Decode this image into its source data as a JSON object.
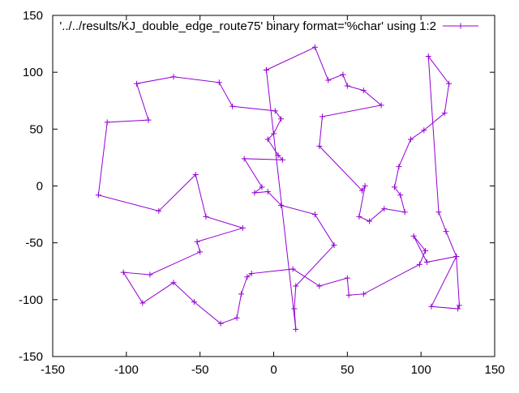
{
  "chart_data": {
    "type": "line",
    "title": "",
    "xlabel": "",
    "ylabel": "",
    "xlim": [
      -150,
      150
    ],
    "ylim": [
      -150,
      150
    ],
    "x_ticks": [
      -150,
      -100,
      -50,
      0,
      50,
      100,
      150
    ],
    "y_ticks": [
      -150,
      -100,
      -50,
      0,
      50,
      100,
      150
    ],
    "grid": false,
    "legend_position": "top-right",
    "series": [
      {
        "name": "'../../results/KJ_double_edge_route75' binary format='%char' using 1:2",
        "color": "#9400d3",
        "marker": "plus",
        "points": [
          [
            -5,
            102
          ],
          [
            28,
            122
          ],
          [
            37,
            93
          ],
          [
            47,
            98
          ],
          [
            50,
            88
          ],
          [
            61,
            84
          ],
          [
            73,
            71
          ],
          [
            33,
            61
          ],
          [
            31,
            35
          ],
          [
            60,
            -4
          ],
          [
            62,
            0
          ],
          [
            58,
            -27
          ],
          [
            65,
            -31
          ],
          [
            75,
            -20
          ],
          [
            89,
            -23
          ],
          [
            86,
            -8
          ],
          [
            82,
            -1
          ],
          [
            85,
            17
          ],
          [
            93,
            41
          ],
          [
            102,
            49
          ],
          [
            116,
            64
          ],
          [
            119,
            90
          ],
          [
            105,
            114
          ],
          [
            112,
            -23
          ],
          [
            117,
            -40
          ],
          [
            124,
            -62
          ],
          [
            107,
            -106
          ],
          [
            125,
            -108
          ],
          [
            126,
            -105
          ],
          [
            124,
            -62
          ],
          [
            104,
            -67
          ],
          [
            95,
            -44
          ],
          [
            103,
            -57
          ],
          [
            99,
            -69
          ],
          [
            61,
            -95
          ],
          [
            51,
            -96
          ],
          [
            50,
            -81
          ],
          [
            31,
            -88
          ],
          [
            13,
            -73
          ],
          [
            -15,
            -77
          ],
          [
            -18,
            -80
          ],
          [
            -22,
            -95
          ],
          [
            -25,
            -116
          ],
          [
            -36,
            -121
          ],
          [
            -54,
            -102
          ],
          [
            -68,
            -85
          ],
          [
            -89,
            -103
          ],
          [
            -102,
            -76
          ],
          [
            -84,
            -78
          ],
          [
            -50,
            -58
          ],
          [
            -52,
            -49
          ],
          [
            -21,
            -37
          ],
          [
            -46,
            -27
          ],
          [
            -53,
            10
          ],
          [
            -78,
            -22
          ],
          [
            -119,
            -8
          ],
          [
            -113,
            56
          ],
          [
            -85,
            58
          ],
          [
            -93,
            90
          ],
          [
            -68,
            96
          ],
          [
            -37,
            91
          ],
          [
            -28,
            70
          ],
          [
            1,
            66
          ],
          [
            5,
            59
          ],
          [
            0,
            46
          ],
          [
            -4,
            41
          ],
          [
            3,
            27
          ],
          [
            6,
            23
          ],
          [
            -20,
            24
          ],
          [
            -8,
            -1
          ],
          [
            -13,
            -6
          ],
          [
            -4,
            -5
          ],
          [
            5,
            -17
          ],
          [
            28,
            -25
          ],
          [
            41,
            -52
          ],
          [
            15,
            -88
          ],
          [
            14,
            -108
          ],
          [
            15,
            -126
          ],
          [
            -5,
            102
          ]
        ]
      }
    ]
  }
}
